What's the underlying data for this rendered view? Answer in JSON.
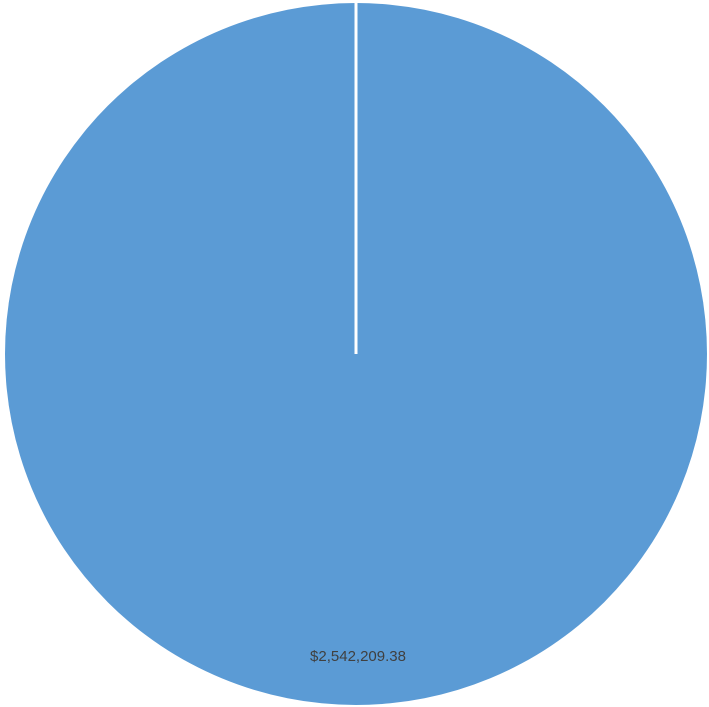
{
  "chart_data": {
    "type": "pie",
    "title": "",
    "slices": [
      {
        "value": 2542209.38,
        "label": "$2,542,209.38",
        "color": "#5B9BD5"
      }
    ],
    "legend": "none",
    "label_color": "#404040",
    "separator_color": "#ffffff"
  }
}
